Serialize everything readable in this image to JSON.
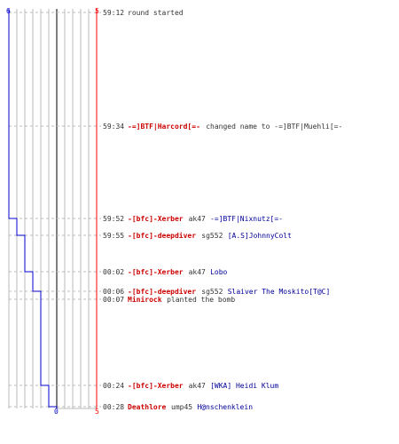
{
  "colors": {
    "red_team": "#cc0000",
    "blue_team": "#000099",
    "red_axis": "#ff0000",
    "blue_line": "#0000cc",
    "text": "#333333",
    "grid": "#bbbbbb",
    "dash": "#bbbbbb"
  },
  "chart_data": {
    "type": "line",
    "axis": {
      "blue_start": "6",
      "blue_end": "0",
      "red_start": "5",
      "red_end": "5"
    },
    "blue_alive": [
      {
        "time": "59:12",
        "alive": 6
      },
      {
        "time": "59:52",
        "alive": 5
      },
      {
        "time": "59:55",
        "alive": 4
      },
      {
        "time": "00:02",
        "alive": 3
      },
      {
        "time": "00:06",
        "alive": 2
      },
      {
        "time": "00:24",
        "alive": 1
      },
      {
        "time": "00:28",
        "alive": 0
      }
    ],
    "red_alive": [
      {
        "time": "59:12",
        "alive": 5
      },
      {
        "time": "00:28",
        "alive": 5
      }
    ],
    "events": [
      {
        "time": "59:12",
        "actor": "",
        "actor_team": "",
        "verb": "round started",
        "weapon": "",
        "target": "",
        "target_team": ""
      },
      {
        "time": "59:34",
        "actor": "-=]BTF|Harcord[=-",
        "actor_team": "red",
        "verb": "changed name to -=]BTF|Muehli[=-",
        "weapon": "",
        "target": "",
        "target_team": ""
      },
      {
        "time": "59:52",
        "actor": "-[bfc]-Xerber",
        "actor_team": "red",
        "verb": "",
        "weapon": "ak47",
        "target": "-=]BTF|Nixnutz[=-",
        "target_team": "blue"
      },
      {
        "time": "59:55",
        "actor": "-[bfc]-deepdiver",
        "actor_team": "red",
        "verb": "",
        "weapon": "sg552",
        "target": "[A.S]JohnnyColt",
        "target_team": "blue"
      },
      {
        "time": "00:02",
        "actor": "-[bfc]-Xerber",
        "actor_team": "red",
        "verb": "",
        "weapon": "ak47",
        "target": "Lobo",
        "target_team": "blue"
      },
      {
        "time": "00:06",
        "actor": "-[bfc]-deepdiver",
        "actor_team": "red",
        "verb": "",
        "weapon": "sg552",
        "target": "Slaiver The Moskito[T@C]",
        "target_team": "blue"
      },
      {
        "time": "00:07",
        "actor": "Minirock",
        "actor_team": "red",
        "verb": "planted the bomb",
        "weapon": "",
        "target": "",
        "target_team": ""
      },
      {
        "time": "00:24",
        "actor": "-[bfc]-Xerber",
        "actor_team": "red",
        "verb": "",
        "weapon": "ak47",
        "target": "[WKA] Heidi Klum",
        "target_team": "blue"
      },
      {
        "time": "00:28",
        "actor": "Deathlore",
        "actor_team": "red",
        "verb": "",
        "weapon": "ump45",
        "target": "H@nschenklein",
        "target_team": "blue"
      }
    ]
  }
}
